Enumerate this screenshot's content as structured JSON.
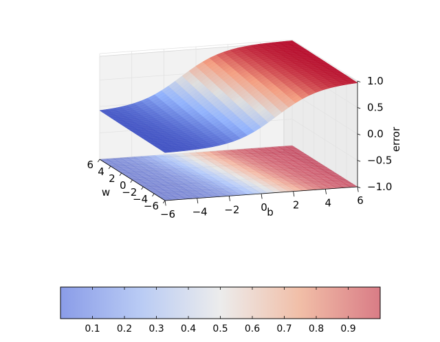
{
  "chart_data": {
    "type": "surface3d",
    "title": "",
    "xlabel": "b",
    "ylabel": "w",
    "zlabel": "error",
    "x_ticks": [
      "−6",
      "−4",
      "−2",
      "0",
      "2",
      "4",
      "6"
    ],
    "y_ticks": [
      "−6",
      "−4",
      "−2",
      "0",
      "2",
      "4",
      "6"
    ],
    "z_ticks": [
      "−1.0",
      "−0.5",
      "0.0",
      "0.5",
      "1.0"
    ],
    "xlim": [
      -6,
      6
    ],
    "ylim": [
      -6,
      6
    ],
    "zlim": [
      -1,
      1
    ],
    "surface": {
      "description_of_shape": "sigmoid-like error surface rising from about -0.1 to about 0.99 as b increases",
      "z_min": -0.1,
      "z_max": 0.99
    },
    "contour_projection": {
      "offset_z": -1.0
    },
    "colormap": "coolwarm",
    "colorbar": {
      "ticks": [
        "0.1",
        "0.2",
        "0.3",
        "0.4",
        "0.5",
        "0.6",
        "0.7",
        "0.8",
        "0.9"
      ],
      "range": [
        0.0,
        1.0
      ],
      "orientation": "horizontal"
    },
    "colors": {
      "low": "#3b4cc0",
      "mid": "#dddddd",
      "high": "#b40426"
    },
    "grid": true
  }
}
